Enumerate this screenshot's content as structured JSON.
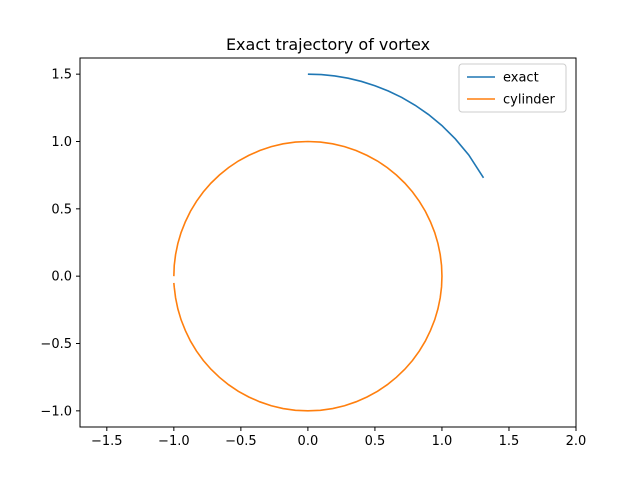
{
  "chart_data": {
    "type": "line",
    "title": "Exact trajectory of vortex",
    "xlabel": "",
    "ylabel": "",
    "xlim": [
      -1.7,
      2.0
    ],
    "ylim": [
      -1.12,
      1.62
    ],
    "xticks": [
      -1.5,
      -1.0,
      -0.5,
      0.0,
      0.5,
      1.0,
      1.5,
      2.0
    ],
    "xtick_labels": [
      "−1.5",
      "−1.0",
      "−0.5",
      "0.0",
      "0.5",
      "1.0",
      "1.5",
      "2.0"
    ],
    "yticks": [
      -1.0,
      -0.5,
      0.0,
      0.5,
      1.0,
      1.5
    ],
    "ytick_labels": [
      "−1.0",
      "−0.5",
      "0.0",
      "0.5",
      "1.0",
      "1.5"
    ],
    "grid": false,
    "legend_position": "top-right",
    "series": [
      {
        "name": "exact",
        "color": "#1f77b4",
        "x": [
          0.0,
          0.1,
          0.2,
          0.3,
          0.4,
          0.5,
          0.6,
          0.7,
          0.8,
          0.9,
          1.0,
          1.1,
          1.2,
          1.31
        ],
        "y": [
          1.5,
          1.497,
          1.487,
          1.47,
          1.446,
          1.414,
          1.375,
          1.327,
          1.269,
          1.2,
          1.118,
          1.019,
          0.9,
          0.73
        ]
      },
      {
        "name": "cylinder",
        "color": "#ff7f0e",
        "x": [
          -1.0,
          -0.997,
          -0.987,
          -0.97,
          -0.946,
          -0.914,
          -0.876,
          -0.831,
          -0.78,
          -0.723,
          -0.66,
          -0.592,
          -0.519,
          -0.441,
          -0.359,
          -0.273,
          -0.185,
          -0.093,
          0.0,
          0.093,
          0.185,
          0.273,
          0.359,
          0.441,
          0.519,
          0.592,
          0.66,
          0.723,
          0.78,
          0.831,
          0.876,
          0.914,
          0.946,
          0.97,
          0.987,
          0.997,
          1.0,
          0.997,
          0.987,
          0.97,
          0.946,
          0.914,
          0.876,
          0.831,
          0.78,
          0.723,
          0.66,
          0.592,
          0.519,
          0.441,
          0.359,
          0.273,
          0.185,
          0.093,
          0.0,
          -0.093,
          -0.185,
          -0.273,
          -0.359,
          -0.441,
          -0.519,
          -0.592,
          -0.66,
          -0.723,
          -0.78,
          -0.831,
          -0.876,
          -0.914,
          -0.946,
          -0.97,
          -0.987,
          -0.997,
          -1.0
        ],
        "y": [
          -0.05,
          -0.082,
          -0.161,
          -0.243,
          -0.324,
          -0.404,
          -0.482,
          -0.556,
          -0.626,
          -0.691,
          -0.751,
          -0.806,
          -0.855,
          -0.897,
          -0.933,
          -0.962,
          -0.983,
          -0.996,
          -1.0,
          -0.996,
          -0.983,
          -0.962,
          -0.933,
          -0.897,
          -0.855,
          -0.806,
          -0.751,
          -0.691,
          -0.626,
          -0.556,
          -0.482,
          -0.404,
          -0.324,
          -0.243,
          -0.161,
          -0.08,
          0.0,
          0.08,
          0.161,
          0.243,
          0.324,
          0.404,
          0.482,
          0.556,
          0.626,
          0.691,
          0.751,
          0.806,
          0.855,
          0.897,
          0.933,
          0.962,
          0.983,
          0.996,
          1.0,
          0.996,
          0.983,
          0.962,
          0.933,
          0.897,
          0.855,
          0.806,
          0.751,
          0.691,
          0.626,
          0.556,
          0.482,
          0.404,
          0.324,
          0.243,
          0.161,
          0.08,
          0.0
        ]
      }
    ]
  }
}
